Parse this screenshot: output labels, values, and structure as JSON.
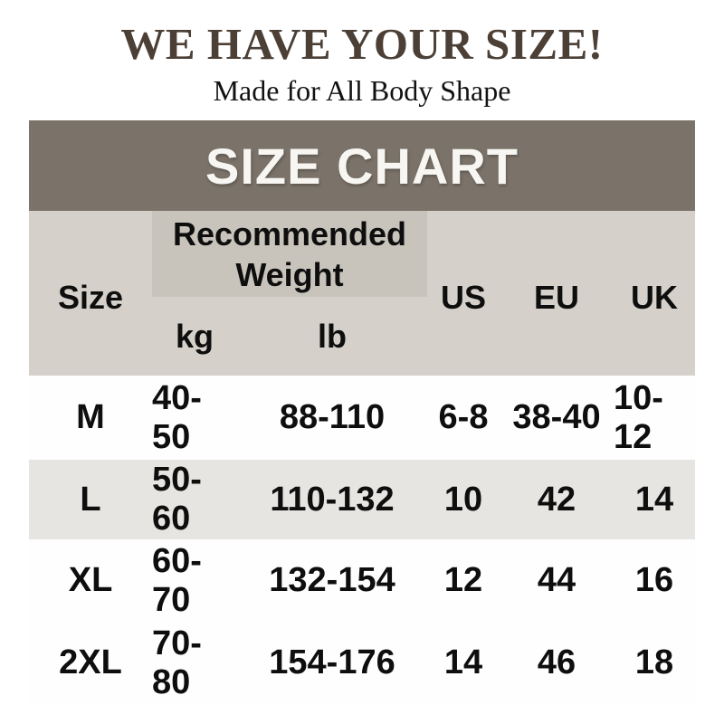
{
  "header": {
    "title": "WE HAVE YOUR SIZE!",
    "subtitle": "Made for All Body Shape"
  },
  "size_chart": {
    "banner": "SIZE CHART",
    "columns": {
      "size": "Size",
      "group": "Recommended Weight",
      "kg": "kg",
      "lb": "lb",
      "us": "US",
      "eu": "EU",
      "uk": "UK"
    },
    "rows": [
      {
        "size": "M",
        "kg": "40-50",
        "lb": "88-110",
        "us": "6-8",
        "eu": "38-40",
        "uk": "10-12"
      },
      {
        "size": "L",
        "kg": "50-60",
        "lb": "110-132",
        "us": "10",
        "eu": "42",
        "uk": "14"
      },
      {
        "size": "XL",
        "kg": "60-70",
        "lb": "132-154",
        "us": "12",
        "eu": "44",
        "uk": "16"
      },
      {
        "size": "2XL",
        "kg": "70-80",
        "lb": "154-176",
        "us": "14",
        "eu": "46",
        "uk": "18"
      }
    ]
  },
  "colors": {
    "title_text": "#4b3f36",
    "banner_bg": "#7b7369",
    "banner_text": "#f8f6f2",
    "header_bg": "#d5d1ca",
    "recommended_block_bg": "#c8c4bc",
    "row_alt_bg": "#e7e5e1",
    "row_bg": "#fefefe",
    "cell_text": "#0e0e0e"
  },
  "chart_data": {
    "type": "table",
    "title": "SIZE CHART",
    "columns": [
      "Size",
      "Recommended Weight kg",
      "Recommended Weight lb",
      "US",
      "EU",
      "UK"
    ],
    "rows": [
      [
        "M",
        "40-50",
        "88-110",
        "6-8",
        "38-40",
        "10-12"
      ],
      [
        "L",
        "50-60",
        "110-132",
        "10",
        "42",
        "14"
      ],
      [
        "XL",
        "60-70",
        "132-154",
        "12",
        "44",
        "16"
      ],
      [
        "2XL",
        "70-80",
        "154-176",
        "14",
        "46",
        "18"
      ]
    ]
  }
}
